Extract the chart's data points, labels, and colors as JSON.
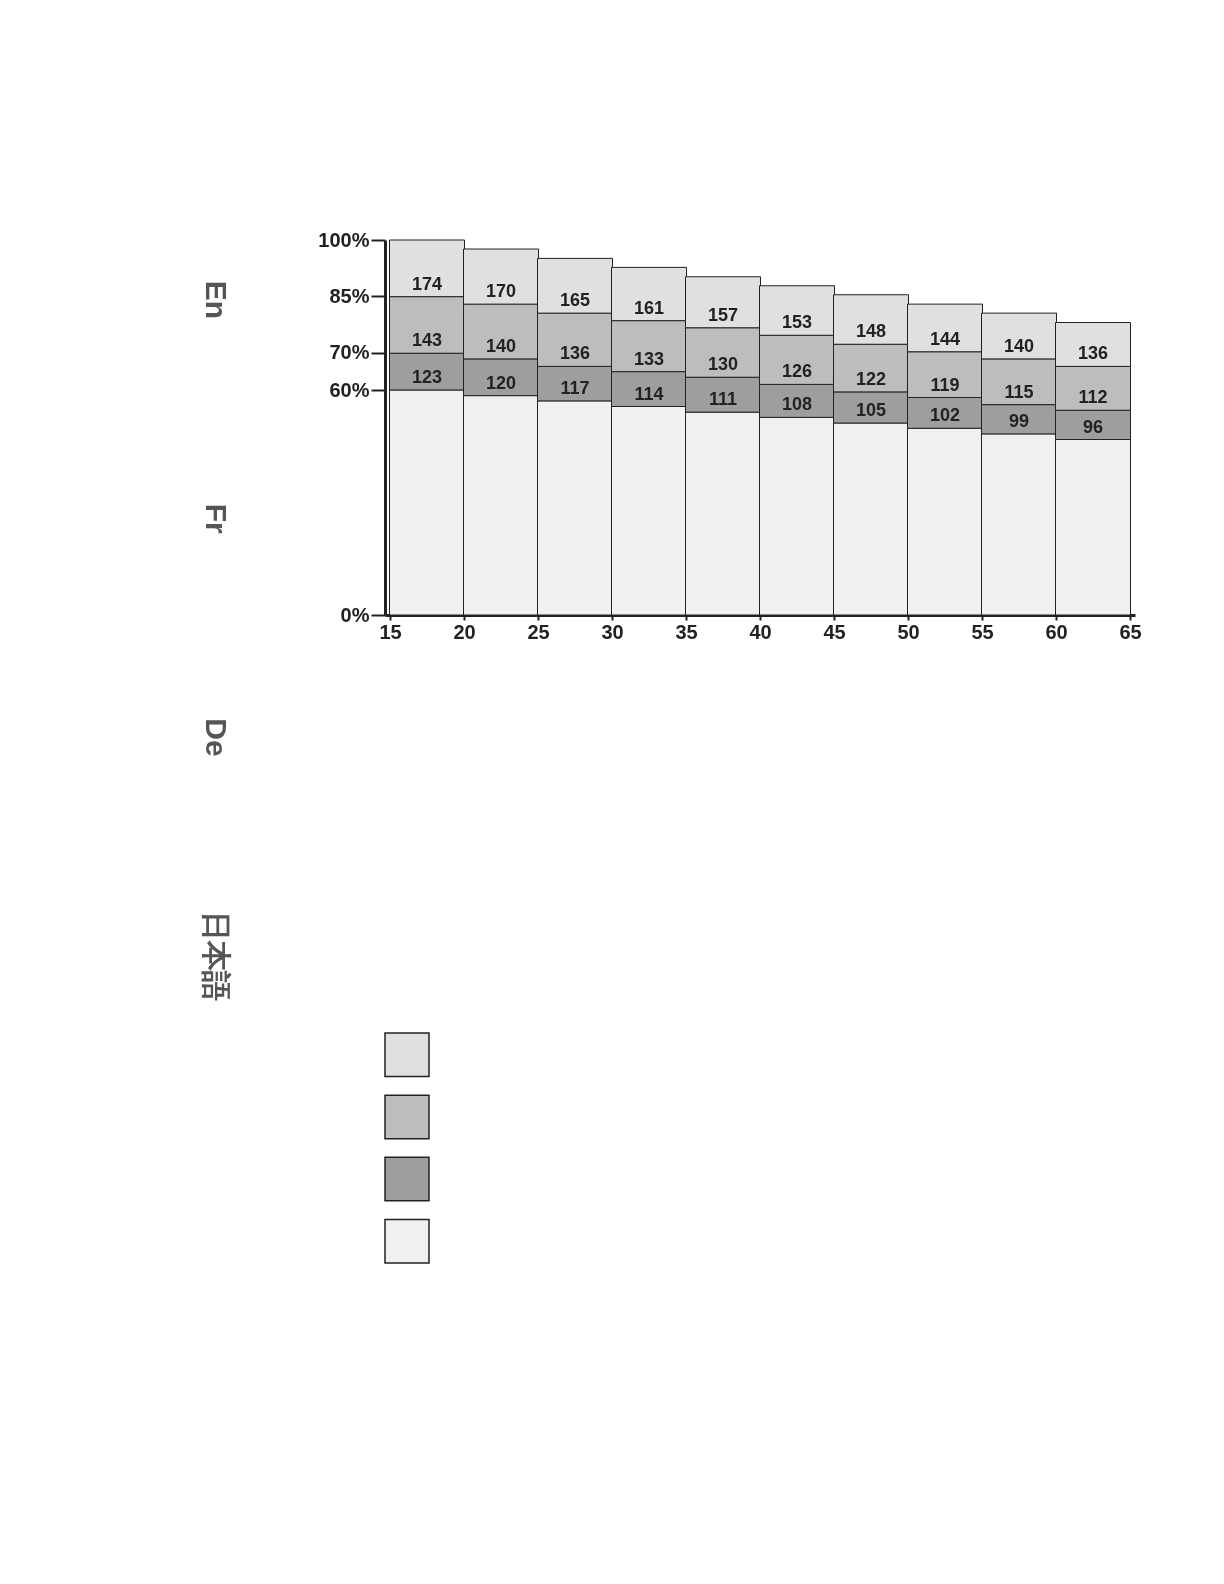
{
  "chart_data": {
    "type": "bar",
    "stacked": true,
    "x": [
      17.5,
      22.5,
      27.5,
      32.5,
      37.5,
      42.5,
      47.5,
      52.5,
      57.5,
      62.5
    ],
    "series": [
      {
        "color": "#f0f0f0",
        "values": [
          60.0,
          58.5,
          57.1,
          55.6,
          54.1,
          52.7,
          51.2,
          49.8,
          48.3,
          46.8
        ]
      },
      {
        "color": "#9e9e9e",
        "values": [
          9.8,
          9.8,
          9.2,
          9.3,
          9.3,
          8.8,
          8.3,
          8.2,
          7.8,
          7.8
        ]
      },
      {
        "color": "#bdbdbd",
        "values": [
          15.1,
          14.6,
          14.2,
          13.6,
          13.2,
          13.1,
          12.7,
          12.2,
          12.2,
          11.7
        ]
      },
      {
        "color": "#e0e0e0",
        "values": [
          15.1,
          14.7,
          14.6,
          14.2,
          13.6,
          13.2,
          13.2,
          12.7,
          12.2,
          11.7
        ]
      }
    ],
    "xlim": [
      15,
      65
    ],
    "xticks": [
      15,
      20,
      25,
      30,
      35,
      40,
      45,
      50,
      55,
      60,
      65
    ],
    "ylim": [
      0,
      100
    ],
    "yticks": [
      {
        "value": 0,
        "label": "0%"
      },
      {
        "value": 60,
        "label": "60%"
      },
      {
        "value": 70,
        "label": "70%"
      },
      {
        "value": 85,
        "label": "85%"
      },
      {
        "value": 100,
        "label": "100%"
      }
    ],
    "grid": false,
    "annotations": [
      "En",
      "Fr",
      "De",
      "日本語",
      {
        "text": "123",
        "x": 17.5,
        "y": 60.0
      },
      {
        "text": "120",
        "x": 22.5,
        "y": 58.5
      },
      {
        "text": "117",
        "x": 27.5,
        "y": 57.1
      },
      {
        "text": "114",
        "x": 32.5,
        "y": 55.6
      },
      {
        "text": "111",
        "x": 37.5,
        "y": 54.1
      },
      {
        "text": "108",
        "x": 42.5,
        "y": 52.7
      },
      {
        "text": "105",
        "x": 47.5,
        "y": 51.2
      },
      {
        "text": "102",
        "x": 52.5,
        "y": 49.8
      },
      {
        "text": "99",
        "x": 57.5,
        "y": 48.3
      },
      {
        "text": "96",
        "x": 62.5,
        "y": 46.8
      },
      {
        "text": "143",
        "x": 17.5,
        "y": 69.8
      },
      {
        "text": "140",
        "x": 22.5,
        "y": 68.3
      },
      {
        "text": "136",
        "x": 27.5,
        "y": 66.3
      },
      {
        "text": "133",
        "x": 32.5,
        "y": 64.9
      },
      {
        "text": "130",
        "x": 37.5,
        "y": 63.4
      },
      {
        "text": "126",
        "x": 42.5,
        "y": 61.5
      },
      {
        "text": "122",
        "x": 47.5,
        "y": 59.5
      },
      {
        "text": "119",
        "x": 52.5,
        "y": 58.0
      },
      {
        "text": "115",
        "x": 57.5,
        "y": 56.1
      },
      {
        "text": "112",
        "x": 62.5,
        "y": 54.6
      },
      {
        "text": "174",
        "x": 17.5,
        "y": 84.9
      },
      {
        "text": "170",
        "x": 22.5,
        "y": 82.9
      },
      {
        "text": "165",
        "x": 27.5,
        "y": 80.5
      },
      {
        "text": "161",
        "x": 32.5,
        "y": 78.5
      },
      {
        "text": "157",
        "x": 37.5,
        "y": 76.6
      },
      {
        "text": "153",
        "x": 42.5,
        "y": 74.6
      },
      {
        "text": "148",
        "x": 47.5,
        "y": 72.2
      },
      {
        "text": "144",
        "x": 52.5,
        "y": 70.2
      },
      {
        "text": "140",
        "x": 57.5,
        "y": 68.3
      },
      {
        "text": "136",
        "x": 62.5,
        "y": 66.3
      }
    ]
  }
}
